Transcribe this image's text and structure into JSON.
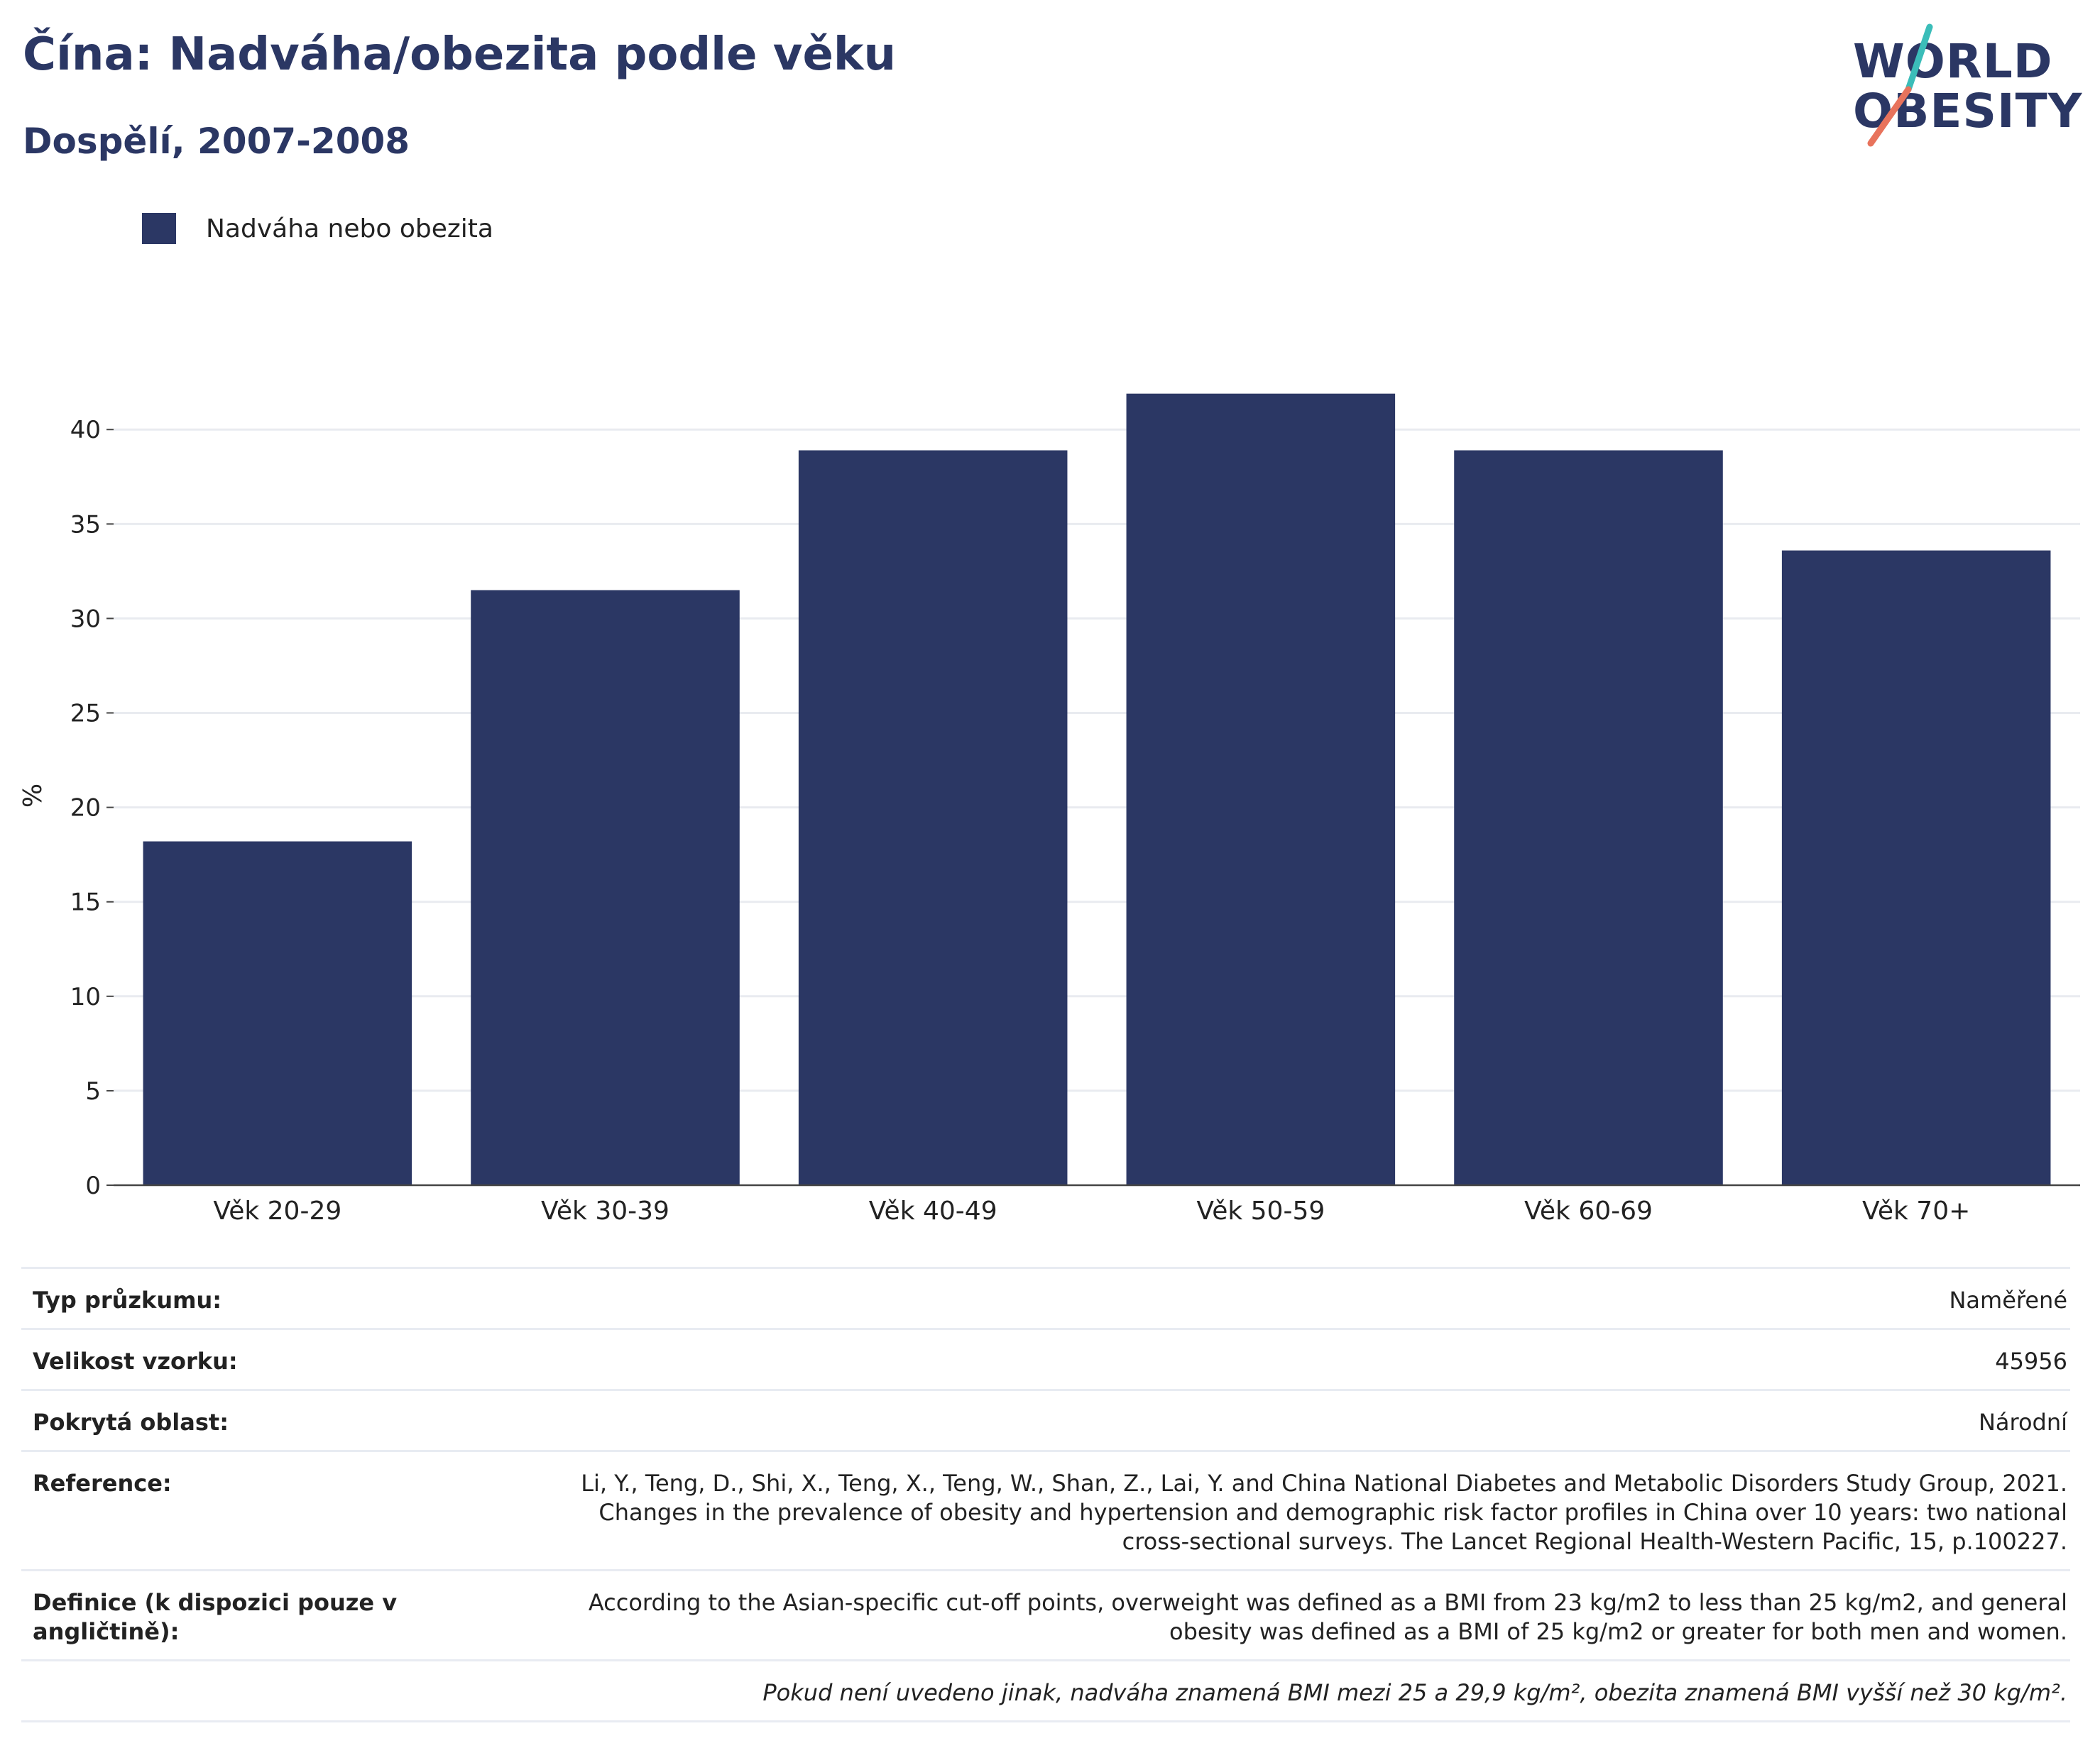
{
  "header": {
    "title": "Čína: Nadváha/obezita podle věku",
    "subtitle": "Dospělí, 2007-2008"
  },
  "logo": {
    "line1": "WORLD",
    "line2": "OBESITY",
    "stroke_colors": [
      "#3bbdb9",
      "#e8735c"
    ]
  },
  "legend": {
    "label": "Nadváha nebo obezita",
    "color": "#2b3764"
  },
  "chart_data": {
    "type": "bar",
    "categories": [
      "Věk 20-29",
      "Věk 30-39",
      "Věk 40-49",
      "Věk 50-59",
      "Věk 60-69",
      "Věk 70+"
    ],
    "series": [
      {
        "name": "Nadváha nebo obezita",
        "values": [
          18.2,
          31.5,
          38.9,
          41.9,
          38.9,
          33.6
        ]
      }
    ],
    "ylabel": "%",
    "xlabel": "",
    "ylim": [
      0,
      42
    ],
    "yticks": [
      0,
      5,
      10,
      15,
      20,
      25,
      30,
      35,
      40
    ],
    "grid": true,
    "legend_position": "top-left",
    "bar_color": "#2b3764"
  },
  "info": {
    "rows": [
      {
        "key": "Typ průzkumu:",
        "value": "Naměřené"
      },
      {
        "key": "Velikost vzorku:",
        "value": "45956"
      },
      {
        "key": "Pokrytá oblast:",
        "value": "Národní"
      },
      {
        "key": "Reference:",
        "value": "Li, Y., Teng, D., Shi, X., Teng, X., Teng, W., Shan, Z., Lai, Y. and China National Diabetes and Metabolic Disorders Study Group, 2021. Changes in the prevalence of obesity and hypertension and demographic risk factor profiles in China over 10 years: two national cross-sectional surveys. The Lancet Regional Health-Western Pacific, 15, p.100227."
      },
      {
        "key": "Definice (k dispozici pouze v angličtině):",
        "value": "According to the Asian-specific cut-off points, overweight was defined as a BMI from 23 kg/m2 to less than 25 kg/m2, and general obesity was defined as a BMI of 25 kg/m2 or greater for both men and women."
      }
    ],
    "footnote": "Pokud není uvedeno jinak, nadváha znamená BMI mezi 25 a 29,9 kg/m², obezita znamená BMI vyšší než 30 kg/m²."
  }
}
